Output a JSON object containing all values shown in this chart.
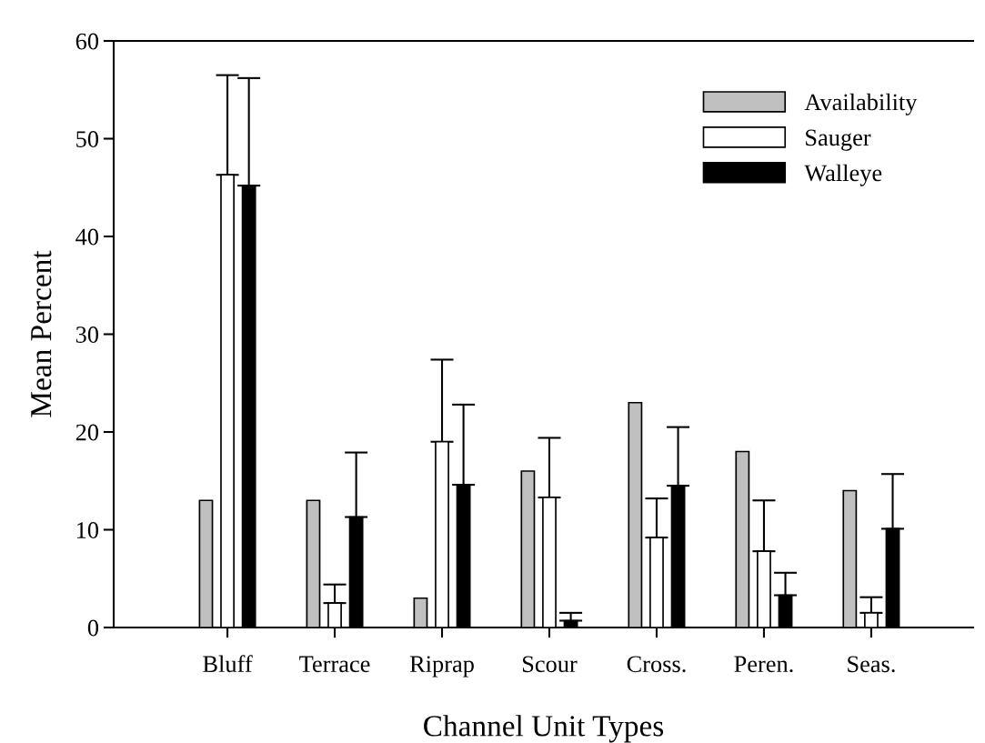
{
  "chart_data": {
    "type": "bar",
    "xlabel": "Channel Unit Types",
    "ylabel": "Mean Percent",
    "categories": [
      "Bluff",
      "Terrace",
      "Riprap",
      "Scour",
      "Cross.",
      "Peren.",
      "Seas."
    ],
    "series": [
      {
        "name": "Availability",
        "color": "#c0c0c0",
        "values": [
          13,
          13,
          3,
          16,
          23,
          18,
          14
        ]
      },
      {
        "name": "Sauger",
        "color": "#ffffff",
        "values": [
          46.3,
          2.5,
          19,
          13.3,
          9.2,
          7.8,
          1.5
        ],
        "errors": [
          [
            46.3,
            56.5
          ],
          [
            2.5,
            4.4
          ],
          [
            19,
            27.4
          ],
          [
            13.3,
            19.4
          ],
          [
            9.2,
            13.2
          ],
          [
            7.8,
            13
          ],
          [
            1.5,
            3.1
          ]
        ]
      },
      {
        "name": "Walleye",
        "color": "#000000",
        "values": [
          45.2,
          11.3,
          14.6,
          0.7,
          14.5,
          3.3,
          10.1
        ],
        "errors": [
          [
            45.2,
            56.2
          ],
          [
            11.3,
            17.9
          ],
          [
            14.6,
            22.8
          ],
          [
            0.7,
            1.5
          ],
          [
            14.5,
            20.5
          ],
          [
            3.3,
            5.6
          ],
          [
            10.1,
            15.7
          ]
        ]
      }
    ],
    "ylim": [
      0,
      60
    ],
    "yticks": [
      0,
      10,
      20,
      30,
      40,
      50,
      60
    ],
    "grid": false,
    "legend": "top right"
  }
}
